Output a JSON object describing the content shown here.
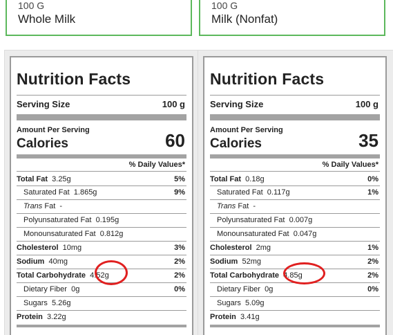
{
  "foods": [
    {
      "amount": "100 G",
      "name": "Whole Milk"
    },
    {
      "amount": "100 G",
      "name": "Milk (Nonfat)"
    }
  ],
  "panels": [
    {
      "title": "Nutrition Facts",
      "serving_label": "Serving Size",
      "serving_value": "100 g",
      "amount_per_serving": "Amount Per Serving",
      "calories_label": "Calories",
      "calories_value": "60",
      "dv_header": "% Daily Values*",
      "total_fat": {
        "label": "Total Fat",
        "value": "3.25g",
        "dv": "5%"
      },
      "saturated_fat": {
        "label": "Saturated Fat",
        "value": "1.865g",
        "dv": "9%"
      },
      "trans_fat": {
        "label_italic": "Trans",
        "label_rest": "Fat",
        "value": "-"
      },
      "poly_fat": {
        "label": "Polyunsaturated Fat",
        "value": "0.195g"
      },
      "mono_fat": {
        "label": "Monounsaturated Fat",
        "value": "0.812g"
      },
      "cholesterol": {
        "label": "Cholesterol",
        "value": "10mg",
        "dv": "3%"
      },
      "sodium": {
        "label": "Sodium",
        "value": "40mg",
        "dv": "2%"
      },
      "carbs": {
        "label": "Total Carbohydrate",
        "value": "4.52g",
        "dv": "2%"
      },
      "fiber": {
        "label": "Dietary Fiber",
        "value": "0g",
        "dv": "0%"
      },
      "sugars": {
        "label": "Sugars",
        "value": "5.26g"
      },
      "protein": {
        "label": "Protein",
        "value": "3.22g"
      }
    },
    {
      "title": "Nutrition Facts",
      "serving_label": "Serving Size",
      "serving_value": "100 g",
      "amount_per_serving": "Amount Per Serving",
      "calories_label": "Calories",
      "calories_value": "35",
      "dv_header": "% Daily Values*",
      "total_fat": {
        "label": "Total Fat",
        "value": "0.18g",
        "dv": "0%"
      },
      "saturated_fat": {
        "label": "Saturated Fat",
        "value": "0.117g",
        "dv": "1%"
      },
      "trans_fat": {
        "label_italic": "Trans",
        "label_rest": "Fat",
        "value": "-"
      },
      "poly_fat": {
        "label": "Polyunsaturated Fat",
        "value": "0.007g"
      },
      "mono_fat": {
        "label": "Monounsaturated Fat",
        "value": "0.047g"
      },
      "cholesterol": {
        "label": "Cholesterol",
        "value": "2mg",
        "dv": "1%"
      },
      "sodium": {
        "label": "Sodium",
        "value": "52mg",
        "dv": "2%"
      },
      "carbs": {
        "label": "Total Carbohydrate",
        "value": "4.85g",
        "dv": "2%"
      },
      "fiber": {
        "label": "Dietary Fiber",
        "value": "0g",
        "dv": "0%"
      },
      "sugars": {
        "label": "Sugars",
        "value": "5.09g"
      },
      "protein": {
        "label": "Protein",
        "value": "3.41g"
      }
    }
  ],
  "annotation_color": "#e02020",
  "card_border_color": "#5cb85c"
}
